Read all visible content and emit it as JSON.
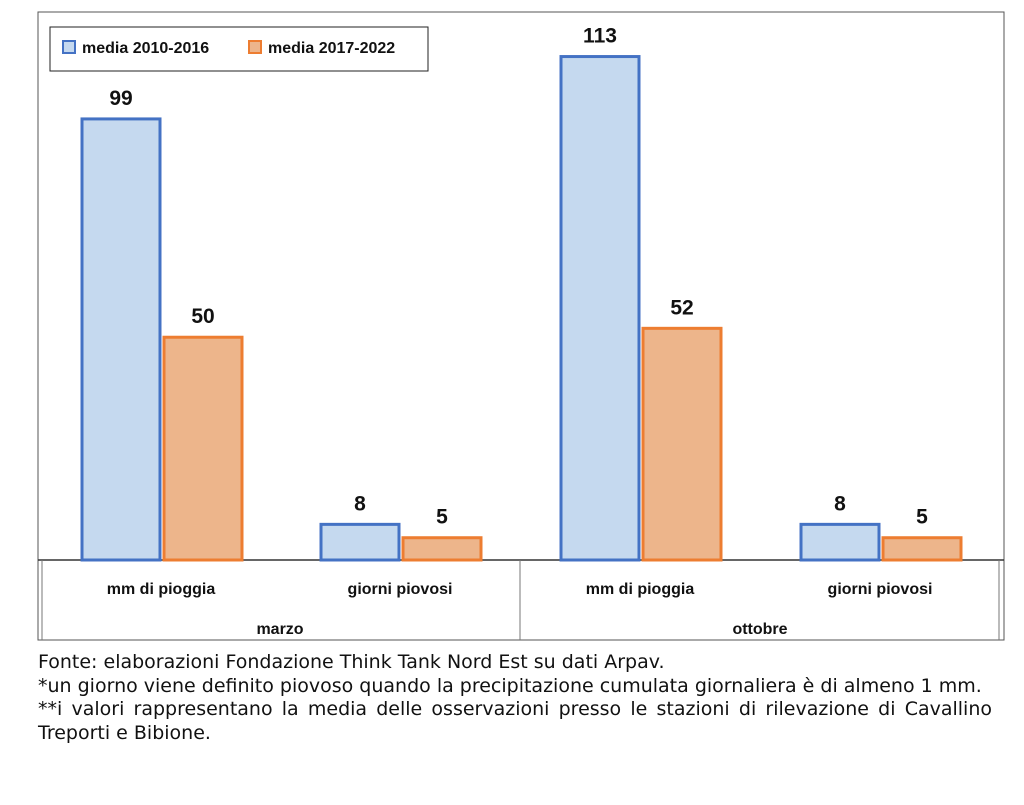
{
  "chart_data": {
    "type": "bar",
    "title": "",
    "xlabel": "",
    "ylabel": "",
    "grid": false,
    "legend_position": "top-left",
    "groups": [
      {
        "name": "marzo",
        "categories": [
          "mm di pioggia",
          "giorni piovosi"
        ]
      },
      {
        "name": "ottobre",
        "categories": [
          "mm di pioggia",
          "giorni piovosi"
        ]
      }
    ],
    "series": [
      {
        "name": "media 2010-2016",
        "fill": "#c5d9ef",
        "stroke": "#4472c4",
        "values": [
          99,
          8,
          113,
          8
        ]
      },
      {
        "name": "media 2017-2022",
        "fill": "#edb58b",
        "stroke": "#ed7d31",
        "values": [
          50,
          5,
          52,
          5
        ]
      }
    ],
    "ylim": [
      0,
      123
    ]
  },
  "notes": {
    "source": "Fonte: elaborazioni Fondazione Think Tank Nord Est su dati Arpav.",
    "note1": "*un giorno viene definito piovoso quando la precipitazione cumulata giornaliera è di almeno 1 mm.",
    "note2": "**i valori rappresentano la media delle osservazioni presso le stazioni di rilevazione di Cavallino Treporti e Bibione."
  }
}
